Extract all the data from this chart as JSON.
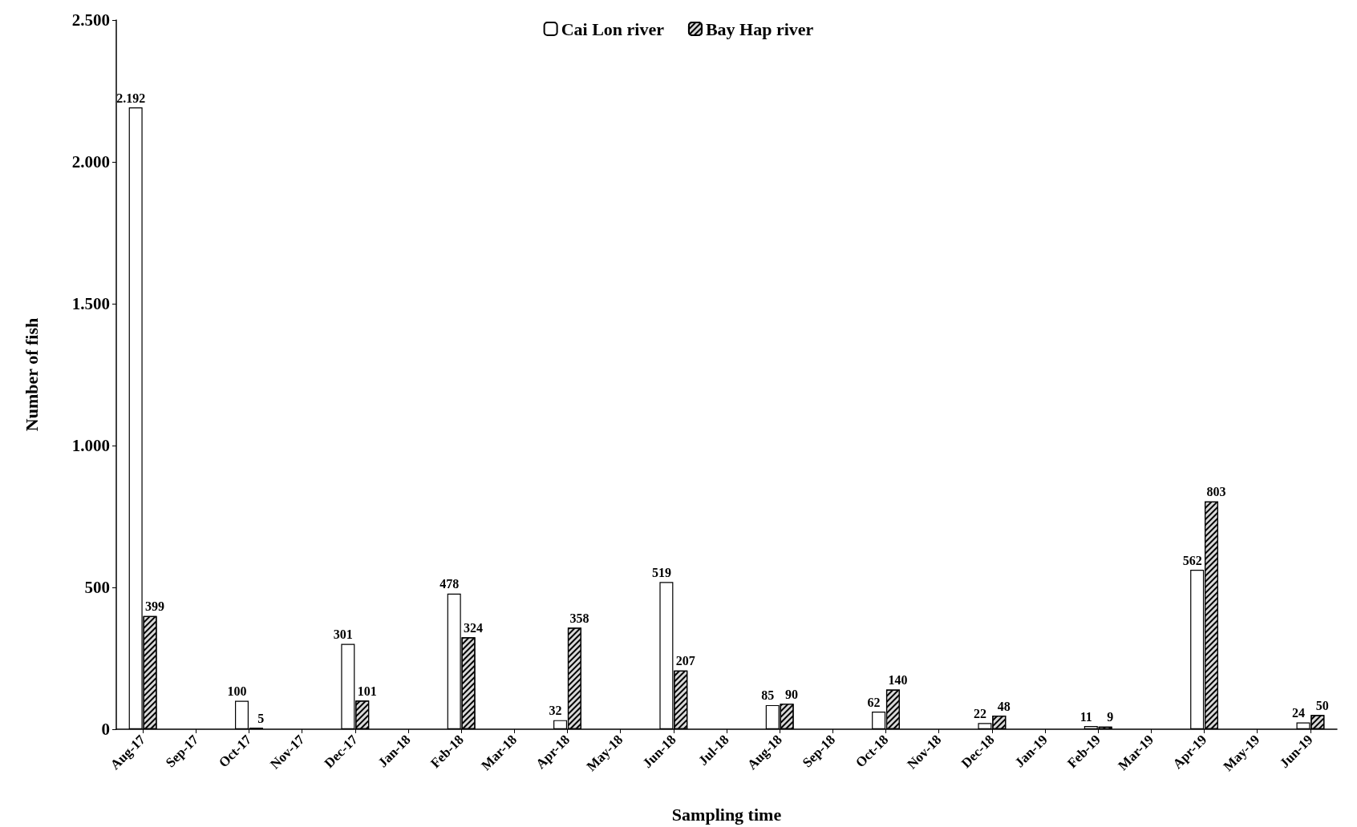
{
  "chart_data": {
    "type": "bar",
    "xlabel": "Sampling time",
    "ylabel": "Number of fish",
    "categories": [
      "Aug-17",
      "Sep-17",
      "Oct-17",
      "Nov-17",
      "Dec-17",
      "Jan-18",
      "Feb-18",
      "Mar-18",
      "Apr-18",
      "May-18",
      "Jun-18",
      "Jul-18",
      "Aug-18",
      "Sep-18",
      "Oct-18",
      "Nov-18",
      "Dec-18",
      "Jan-19",
      "Feb-19",
      "Mar-19",
      "Apr-19",
      "May-19",
      "Jun-19"
    ],
    "series": [
      {
        "name": "Cai Lon river",
        "color": "#ffffff",
        "values": [
          2192,
          null,
          100,
          null,
          301,
          null,
          478,
          null,
          32,
          null,
          519,
          null,
          85,
          null,
          62,
          null,
          22,
          null,
          11,
          null,
          562,
          null,
          24
        ],
        "value_labels": [
          "2.192",
          null,
          "100",
          null,
          "301",
          null,
          "478",
          null,
          "32",
          null,
          "519",
          null,
          "85",
          null,
          "62",
          null,
          "22",
          null,
          "11",
          null,
          "562",
          null,
          "24"
        ]
      },
      {
        "name": "Bay Hap river",
        "color": "#d9d9d9",
        "values": [
          399,
          null,
          5,
          null,
          101,
          null,
          324,
          null,
          358,
          null,
          207,
          null,
          90,
          null,
          140,
          null,
          48,
          null,
          9,
          null,
          803,
          null,
          50
        ],
        "value_labels": [
          "399",
          null,
          "5",
          null,
          "101",
          null,
          "324",
          null,
          "358",
          null,
          "207",
          null,
          "90",
          null,
          "140",
          null,
          "48",
          null,
          "9",
          null,
          "803",
          null,
          "50"
        ]
      }
    ],
    "ylim": [
      0,
      2500
    ],
    "yticks": [
      0,
      {
        "value": 500,
        "label": "500"
      },
      {
        "value": 1000,
        "label": "1.000"
      },
      {
        "value": 1500,
        "label": "1.500"
      },
      {
        "value": 2000,
        "label": "2.000"
      },
      {
        "value": 2500,
        "label": "2.500"
      }
    ],
    "grid": false,
    "legend": "top"
  }
}
